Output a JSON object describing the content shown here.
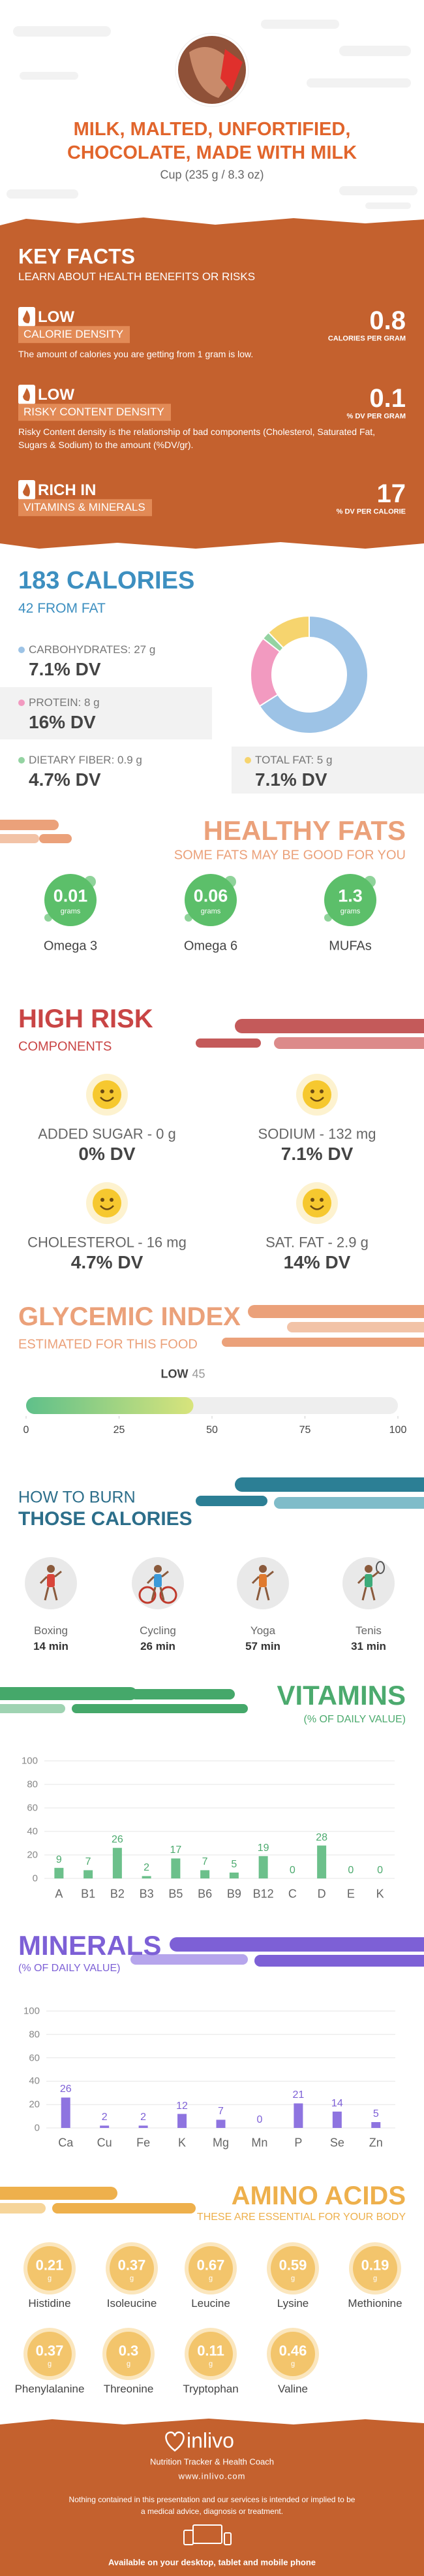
{
  "header": {
    "title": "MILK, MALTED, UNFORTIFIED, CHOCOLATE, MADE WITH MILK",
    "serving": "Cup (235 g / 8.3 oz)"
  },
  "key_facts": {
    "title": "KEY FACTS",
    "subtitle": "LEARN ABOUT HEALTH BENEFITS OR RISKS",
    "items": [
      {
        "level": "LOW",
        "name": "CALORIE DENSITY",
        "value": 0.8,
        "unit": "CALORIES PER GRAM",
        "description": "The amount of calories you are getting from 1 gram is low."
      },
      {
        "level": "LOW",
        "name": "RISKY CONTENT DENSITY",
        "value": 0.1,
        "unit": "% DV PER GRAM",
        "description": "Risky Content density is the relationship of bad components (Cholesterol, Saturated Fat, Sugars & Sodium) to the amount (%DV/gr)."
      },
      {
        "level": "RICH IN",
        "name": "VITAMINS & MINERALS",
        "value": 17,
        "unit": "% DV PER CALORIE"
      }
    ]
  },
  "calories": {
    "title": "183 CALORIES",
    "subtitle": "42 FROM FAT"
  },
  "chart_data": [
    {
      "type": "pie",
      "categories": [
        "CARBOHYDRATES: 27 g",
        "PROTEIN: 8 g",
        "DIETARY FIBER: 0.9 g",
        "TOTAL FAT: 5 g"
      ],
      "values": [
        27,
        8,
        0.9,
        5
      ],
      "dv": [
        "7.1% DV",
        "16% DV",
        "4.7% DV",
        "7.1% DV"
      ],
      "colors": [
        "#9dc3e6",
        "#f29ac0",
        "#94d3a2",
        "#f6d46e"
      ]
    },
    {
      "type": "bar",
      "title": "VITAMINS",
      "subtitle": "(% OF DAILY VALUE)",
      "categories": [
        "A",
        "B1",
        "B2",
        "B3",
        "B5",
        "B6",
        "B9",
        "B12",
        "C",
        "D",
        "E",
        "K"
      ],
      "values": [
        9,
        7,
        26,
        2,
        17,
        7,
        5,
        19,
        0,
        28,
        0,
        0
      ],
      "color": "#6cc08b",
      "ylim": [
        0,
        100
      ],
      "yticks": [
        0,
        20,
        40,
        60,
        80,
        100
      ],
      "grid": true
    },
    {
      "type": "bar",
      "title": "MINERALS",
      "subtitle": "(% OF DAILY VALUE)",
      "categories": [
        "Ca",
        "Cu",
        "Fe",
        "K",
        "Mg",
        "Mn",
        "P",
        "Se",
        "Zn"
      ],
      "values": [
        26,
        2,
        2,
        12,
        7,
        0,
        21,
        14,
        5
      ],
      "color": "#8e74e0",
      "ylim": [
        0,
        100
      ],
      "yticks": [
        0,
        20,
        40,
        60,
        80,
        100
      ],
      "grid": true
    }
  ],
  "healthy_fats": {
    "title": "HEALTHY FATS",
    "subtitle": "SOME FATS MAY BE GOOD FOR YOU",
    "unit": "grams",
    "items": [
      {
        "name": "Omega 3",
        "value": 0.01
      },
      {
        "name": "Omega 6",
        "value": 0.06
      },
      {
        "name": "MUFAs",
        "value": 1.3
      }
    ]
  },
  "high_risk": {
    "title": "HIGH RISK",
    "subtitle": "COMPONENTS",
    "items": [
      {
        "label": "ADDED SUGAR - 0 g",
        "dv": "0% DV"
      },
      {
        "label": "SODIUM - 132 mg",
        "dv": "7.1% DV"
      },
      {
        "label": "CHOLESTEROL - 16 mg",
        "dv": "4.7% DV"
      },
      {
        "label": "SAT. FAT - 2.9 g",
        "dv": "14% DV"
      }
    ]
  },
  "glycemic_index": {
    "title": "GLYCEMIC INDEX",
    "subtitle": "ESTIMATED FOR THIS FOOD",
    "level": "LOW",
    "value": 45,
    "xlim": [
      0,
      100
    ],
    "xticks": [
      0,
      25,
      50,
      75,
      100
    ]
  },
  "burn": {
    "title": "HOW TO BURN",
    "subtitle": "THOSE CALORIES",
    "activities": [
      {
        "name": "Boxing",
        "time": "14 min"
      },
      {
        "name": "Cycling",
        "time": "26 min"
      },
      {
        "name": "Yoga",
        "time": "57 min"
      },
      {
        "name": "Tenis",
        "time": "31 min"
      }
    ]
  },
  "amino_acids": {
    "title": "AMINO ACIDS",
    "subtitle": "THESE ARE ESSENTIAL FOR YOUR BODY",
    "unit": "g",
    "items": [
      {
        "name": "Histidine",
        "value": 0.21
      },
      {
        "name": "Isoleucine",
        "value": 0.37
      },
      {
        "name": "Leucine",
        "value": 0.67
      },
      {
        "name": "Lysine",
        "value": 0.59
      },
      {
        "name": "Methionine",
        "value": 0.19
      },
      {
        "name": "Phenylalanine",
        "value": 0.37
      },
      {
        "name": "Threonine",
        "value": 0.3
      },
      {
        "name": "Tryptophan",
        "value": 0.11
      },
      {
        "name": "Valine",
        "value": 0.46
      }
    ]
  },
  "footer": {
    "brand": "inlivo",
    "tagline": "Nutrition Tracker & Health Coach",
    "url": "www.inlivo.com",
    "disclaimer": "Nothing contained in this presentation and our services is intended or implied to be a medical advice, diagnosis or treatment.",
    "availability": "Available on your desktop, tablet and mobile phone"
  }
}
